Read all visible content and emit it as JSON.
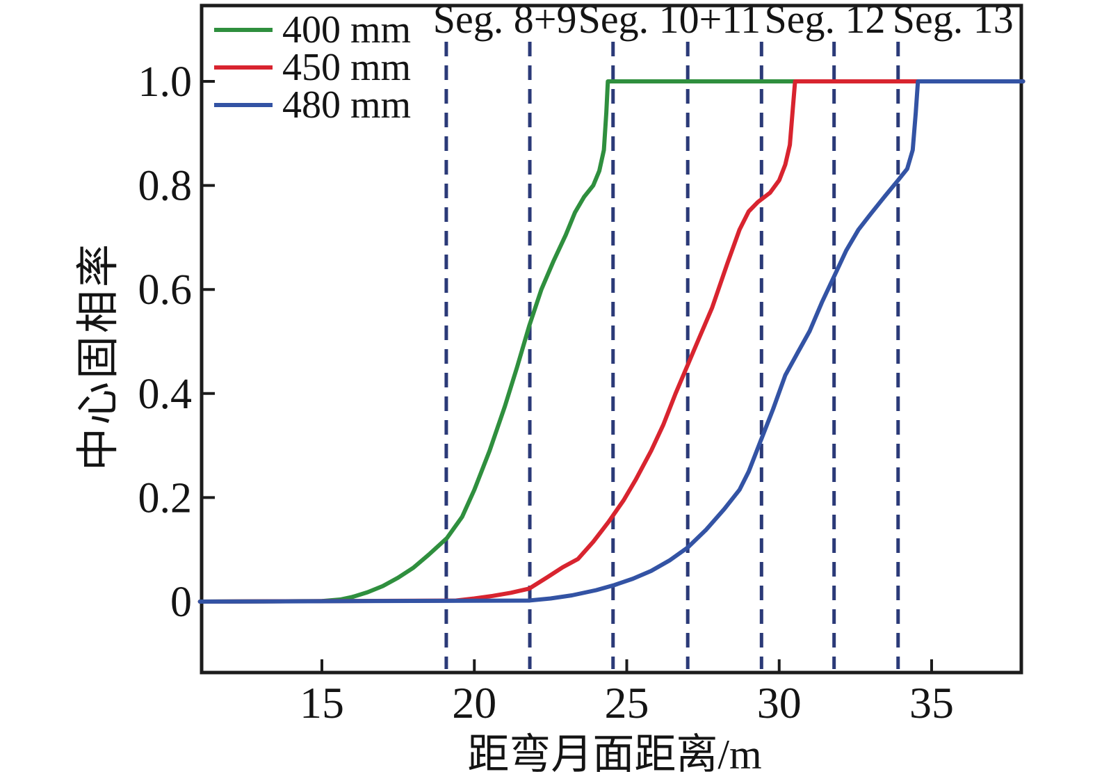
{
  "chart_data": {
    "type": "line",
    "title": "",
    "xlabel": "距弯月面距离/m",
    "ylabel": "中心固相率",
    "xlim": [
      11,
      38
    ],
    "ylim": [
      -0.14,
      1.15
    ],
    "xticks": [
      15,
      20,
      25,
      30,
      35
    ],
    "yticks": [
      0,
      0.2,
      0.4,
      0.6,
      0.8,
      1.0
    ],
    "ytick_labels": [
      "0",
      "0.2",
      "0.4",
      "0.6",
      "0.8",
      "1.0"
    ],
    "grid": false,
    "legend_position": "top-left-inside",
    "frame_color": "#1c1c1c",
    "series": [
      {
        "name": "400 mm",
        "color": "#2f8f3e",
        "points": [
          [
            11.0,
            0
          ],
          [
            15.0,
            0.001
          ],
          [
            15.6,
            0.004
          ],
          [
            16.0,
            0.009
          ],
          [
            16.5,
            0.018
          ],
          [
            17.0,
            0.03
          ],
          [
            17.5,
            0.046
          ],
          [
            18.0,
            0.065
          ],
          [
            18.5,
            0.09
          ],
          [
            19.1,
            0.122
          ],
          [
            19.6,
            0.163
          ],
          [
            20.0,
            0.215
          ],
          [
            20.5,
            0.29
          ],
          [
            21.0,
            0.375
          ],
          [
            21.4,
            0.45
          ],
          [
            21.8,
            0.53
          ],
          [
            22.2,
            0.6
          ],
          [
            22.6,
            0.655
          ],
          [
            23.0,
            0.705
          ],
          [
            23.3,
            0.748
          ],
          [
            23.6,
            0.778
          ],
          [
            23.9,
            0.8
          ],
          [
            24.1,
            0.828
          ],
          [
            24.25,
            0.868
          ],
          [
            24.33,
            0.94
          ],
          [
            24.38,
            1.0
          ],
          [
            38.0,
            1.0
          ]
        ]
      },
      {
        "name": "450 mm",
        "color": "#d8242f",
        "points": [
          [
            11.0,
            0
          ],
          [
            19.4,
            0.002
          ],
          [
            20.0,
            0.006
          ],
          [
            20.6,
            0.011
          ],
          [
            21.2,
            0.017
          ],
          [
            21.8,
            0.025
          ],
          [
            22.4,
            0.047
          ],
          [
            22.9,
            0.066
          ],
          [
            23.4,
            0.082
          ],
          [
            23.9,
            0.115
          ],
          [
            24.4,
            0.153
          ],
          [
            24.9,
            0.195
          ],
          [
            25.3,
            0.235
          ],
          [
            25.8,
            0.29
          ],
          [
            26.2,
            0.34
          ],
          [
            26.6,
            0.4
          ],
          [
            27.0,
            0.455
          ],
          [
            27.4,
            0.51
          ],
          [
            27.8,
            0.565
          ],
          [
            28.3,
            0.65
          ],
          [
            28.7,
            0.715
          ],
          [
            29.0,
            0.75
          ],
          [
            29.3,
            0.768
          ],
          [
            29.7,
            0.786
          ],
          [
            30.0,
            0.81
          ],
          [
            30.2,
            0.84
          ],
          [
            30.35,
            0.878
          ],
          [
            30.45,
            0.95
          ],
          [
            30.52,
            1.0
          ],
          [
            38.0,
            1.0
          ]
        ]
      },
      {
        "name": "480 mm",
        "color": "#3353a4",
        "points": [
          [
            11.0,
            0
          ],
          [
            21.8,
            0.002
          ],
          [
            22.5,
            0.006
          ],
          [
            23.2,
            0.012
          ],
          [
            24.0,
            0.022
          ],
          [
            24.6,
            0.032
          ],
          [
            25.2,
            0.044
          ],
          [
            25.8,
            0.059
          ],
          [
            26.4,
            0.079
          ],
          [
            27.0,
            0.104
          ],
          [
            27.6,
            0.138
          ],
          [
            28.2,
            0.178
          ],
          [
            28.7,
            0.215
          ],
          [
            29.0,
            0.25
          ],
          [
            29.4,
            0.31
          ],
          [
            29.8,
            0.37
          ],
          [
            30.2,
            0.435
          ],
          [
            30.6,
            0.478
          ],
          [
            31.0,
            0.52
          ],
          [
            31.4,
            0.575
          ],
          [
            31.8,
            0.625
          ],
          [
            32.2,
            0.675
          ],
          [
            32.6,
            0.715
          ],
          [
            33.0,
            0.745
          ],
          [
            33.45,
            0.778
          ],
          [
            33.9,
            0.81
          ],
          [
            34.2,
            0.832
          ],
          [
            34.38,
            0.868
          ],
          [
            34.48,
            0.94
          ],
          [
            34.55,
            1.0
          ],
          [
            38.0,
            1.0
          ]
        ]
      }
    ],
    "segment_boundaries": {
      "color": "#2b3a78",
      "x_values": [
        19.08,
        21.82,
        24.55,
        27.0,
        29.42,
        31.8,
        33.9
      ]
    },
    "segment_labels": [
      {
        "text": "Seg. 8+9",
        "x": 21.0
      },
      {
        "text": "Seg. 10+11",
        "x": 26.4
      },
      {
        "text": "Seg. 12",
        "x": 31.5
      },
      {
        "text": "Seg. 13",
        "x": 35.7
      }
    ]
  }
}
